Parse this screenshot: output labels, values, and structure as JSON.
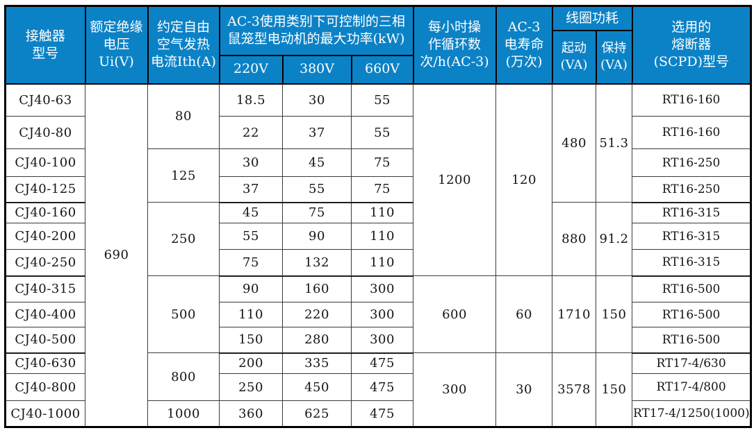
{
  "table": {
    "accent_color": "#0c82c6",
    "header_text_color": "#ffffff",
    "header": {
      "model": "接触器\n型号",
      "insulation_voltage": "额定绝缘\n电压Ui(V)",
      "thermal_current": "约定自由\n空气发热\n电流Ith(A)",
      "max_power_group": "AC-3使用类别下可控制的三相\n鼠笼型电动机的最大功率(kW)",
      "v220": "220V",
      "v380": "380V",
      "v660": "660V",
      "cycles": "每小时操\n作循环数\n次/h(AC-3)",
      "electrical_life": "AC-3\n电寿命\n(万次)",
      "coil_power_group": "线圈功耗",
      "coil_start": "起动\n(VA)",
      "coil_hold": "保持\n(VA)",
      "fuse": "选用的\n熔断器\n(SCPD)型号"
    },
    "rows": [
      {
        "model": "CJ40-63",
        "kw220": "18.5",
        "kw380": "30",
        "kw660": "55",
        "fuse": "RT16-160"
      },
      {
        "model": "CJ40-80",
        "kw220": "22",
        "kw380": "37",
        "kw660": "55",
        "fuse": "RT16-160"
      },
      {
        "model": "CJ40-100",
        "kw220": "30",
        "kw380": "45",
        "kw660": "75",
        "fuse": "RT16-250"
      },
      {
        "model": "CJ40-125",
        "kw220": "37",
        "kw380": "55",
        "kw660": "75",
        "fuse": "RT16-250"
      },
      {
        "model": "CJ40-160",
        "kw220": "45",
        "kw380": "75",
        "kw660": "110",
        "fuse": "RT16-315"
      },
      {
        "model": "CJ40-200",
        "kw220": "55",
        "kw380": "90",
        "kw660": "110",
        "fuse": "RT16-315"
      },
      {
        "model": "CJ40-250",
        "kw220": "75",
        "kw380": "132",
        "kw660": "110",
        "fuse": "RT16-315"
      },
      {
        "model": "CJ40-315",
        "kw220": "90",
        "kw380": "160",
        "kw660": "300",
        "fuse": "RT16-500"
      },
      {
        "model": "CJ40-400",
        "kw220": "110",
        "kw380": "220",
        "kw660": "300",
        "fuse": "RT16-500"
      },
      {
        "model": "CJ40-500",
        "kw220": "150",
        "kw380": "280",
        "kw660": "300",
        "fuse": "RT16-500"
      },
      {
        "model": "CJ40-630",
        "kw220": "200",
        "kw380": "335",
        "kw660": "475",
        "fuse": "RT17-4/630"
      },
      {
        "model": "CJ40-800",
        "kw220": "250",
        "kw380": "450",
        "kw660": "475",
        "fuse": "RT17-4/800"
      },
      {
        "model": "CJ40-1000",
        "kw220": "360",
        "kw380": "625",
        "kw660": "475",
        "fuse": "RT17-4/1250(1000)"
      }
    ],
    "merged": {
      "ui": [
        {
          "value": "690",
          "rows": 13
        }
      ],
      "ith": [
        {
          "value": "80",
          "rows": 2
        },
        {
          "value": "125",
          "rows": 2
        },
        {
          "value": "250",
          "rows": 3
        },
        {
          "value": "500",
          "rows": 3
        },
        {
          "value": "800",
          "rows": 2
        },
        {
          "value": "1000",
          "rows": 1
        }
      ],
      "cycles": [
        {
          "value": "1200",
          "rows": 7
        },
        {
          "value": "600",
          "rows": 3
        },
        {
          "value": "300",
          "rows": 3
        }
      ],
      "life": [
        {
          "value": "120",
          "rows": 7
        },
        {
          "value": "60",
          "rows": 3
        },
        {
          "value": "30",
          "rows": 3
        }
      ],
      "start_va": [
        {
          "value": "480",
          "rows": 4
        },
        {
          "value": "880",
          "rows": 3
        },
        {
          "value": "1710",
          "rows": 3
        },
        {
          "value": "3578",
          "rows": 3
        }
      ],
      "hold_va": [
        {
          "value": "51.3",
          "rows": 4
        },
        {
          "value": "91.2",
          "rows": 3
        },
        {
          "value": "150",
          "rows": 3
        },
        {
          "value": "150",
          "rows": 3
        }
      ]
    }
  }
}
